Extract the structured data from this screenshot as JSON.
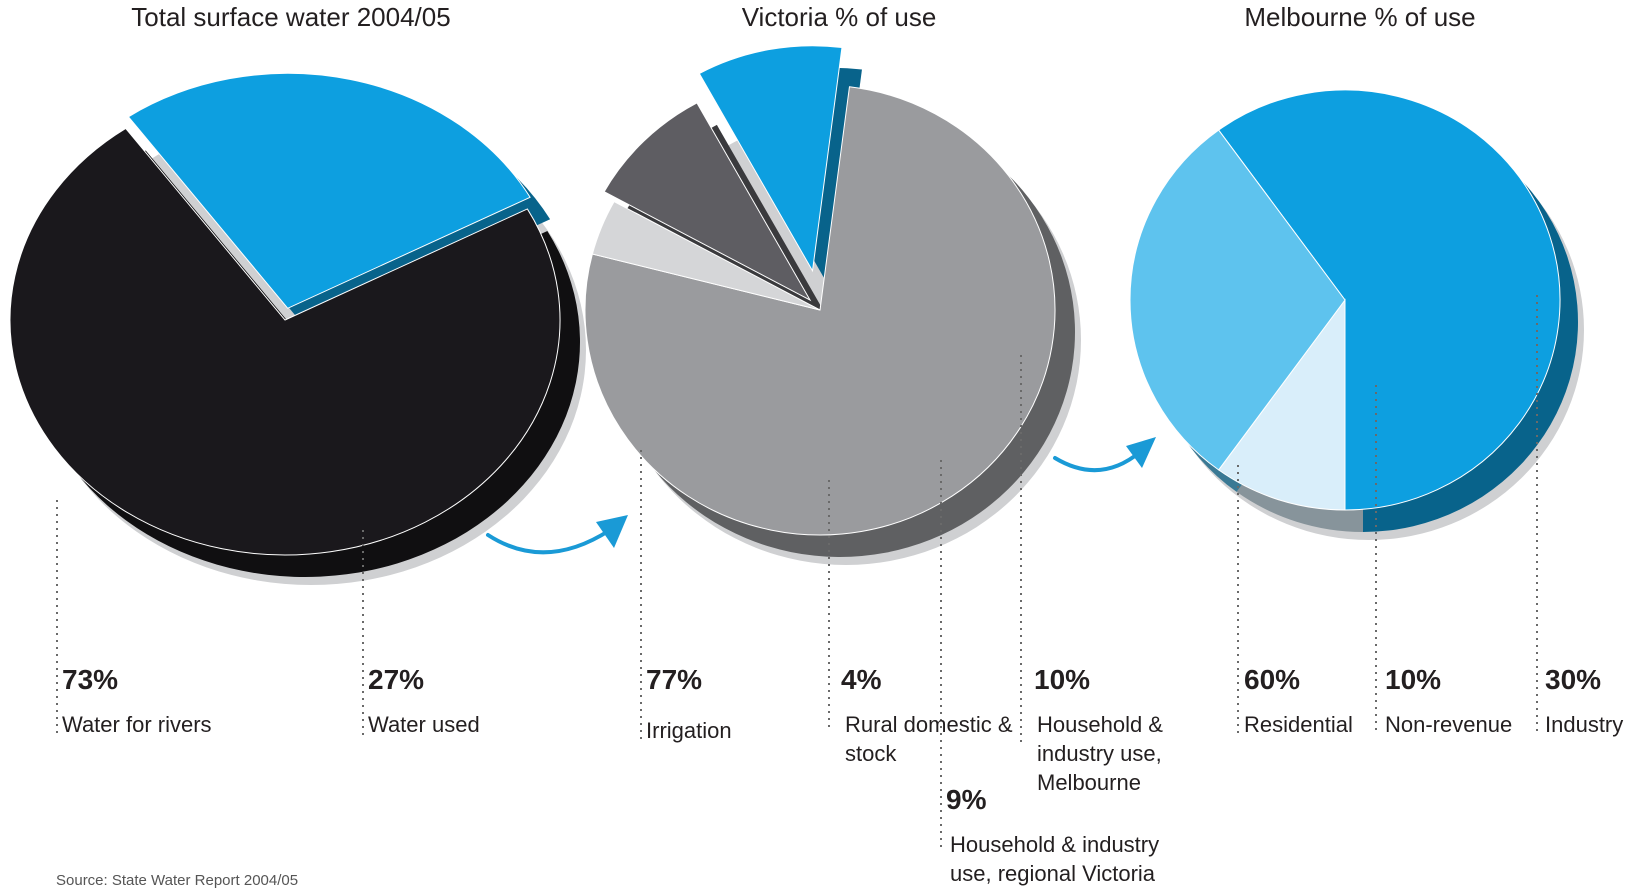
{
  "chart_data": [
    {
      "type": "pie",
      "title": "Total surface water 2004/05",
      "slices": [
        {
          "label": "Water for rivers",
          "value": 73,
          "display": "73%",
          "color": "#1a181c"
        },
        {
          "label": "Water used",
          "value": 27,
          "display": "27%",
          "color": "#0d9fe0"
        }
      ]
    },
    {
      "type": "pie",
      "title": "Victoria % of use",
      "slices": [
        {
          "label": "Irrigation",
          "value": 77,
          "display": "77%",
          "color": "#9a9b9e"
        },
        {
          "label": "Rural domestic & stock",
          "value": 4,
          "display": "4%",
          "color": "#d5d6d8"
        },
        {
          "label": "Household & industry use, regional Victoria",
          "value": 9,
          "display": "9%",
          "color": "#5e5d62"
        },
        {
          "label": "Household & industry use, Melbourne",
          "value": 10,
          "display": "10%",
          "color": "#0d9fe0"
        }
      ]
    },
    {
      "type": "pie",
      "title": "Melbourne % of use",
      "slices": [
        {
          "label": "Residential",
          "value": 60,
          "display": "60%",
          "color": "#0d9fe0"
        },
        {
          "label": "Non-revenue",
          "value": 10,
          "display": "10%",
          "color": "#d9eefa"
        },
        {
          "label": "Industry",
          "value": 30,
          "display": "30%",
          "color": "#5ec3ee"
        }
      ]
    }
  ],
  "source": "Source: State Water Report 2004/05",
  "colors": {
    "arrow": "#1a9ad6",
    "leader": "#6a6a6a"
  }
}
